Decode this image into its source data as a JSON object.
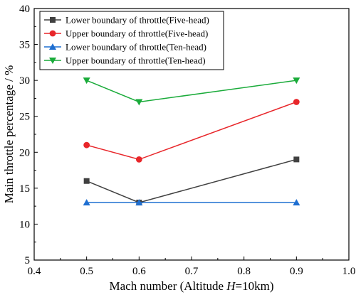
{
  "chart_data": {
    "type": "line",
    "xlabel": {
      "prefix": "Mach number (Altitude ",
      "var": "H",
      "suffix": "=10km)"
    },
    "ylabel": "Main throttle percentage / %",
    "xlim": [
      0.4,
      1.0
    ],
    "ylim": [
      5,
      40
    ],
    "xticks": [
      0.4,
      0.5,
      0.6,
      0.7,
      0.8,
      0.9,
      1.0
    ],
    "xtick_labels": [
      "0.4",
      "0.5",
      "0.6",
      "0.7",
      "0.8",
      "0.9",
      "1.0"
    ],
    "yticks": [
      5,
      10,
      15,
      20,
      25,
      30,
      35,
      40
    ],
    "ytick_labels": [
      "5",
      "10",
      "15",
      "20",
      "25",
      "30",
      "35",
      "40"
    ],
    "grid": false,
    "legend_position": "top-left",
    "x": [
      0.5,
      0.6,
      0.9
    ],
    "series": [
      {
        "name": "Lower boundary of throttle(Five-head)",
        "values": [
          16,
          13,
          19
        ],
        "color": "#404040",
        "marker": "square"
      },
      {
        "name": "Upper boundary of throttle(Five-head)",
        "values": [
          21,
          19,
          27
        ],
        "color": "#e8262a",
        "marker": "circle"
      },
      {
        "name": "Lower boundary of throttle(Ten-head)",
        "values": [
          13,
          13,
          13
        ],
        "color": "#1f6fd1",
        "marker": "triangle-up"
      },
      {
        "name": "Upper boundary of throttle(Ten-head)",
        "values": [
          30,
          27,
          30
        ],
        "color": "#1aab3a",
        "marker": "triangle-down"
      }
    ]
  }
}
